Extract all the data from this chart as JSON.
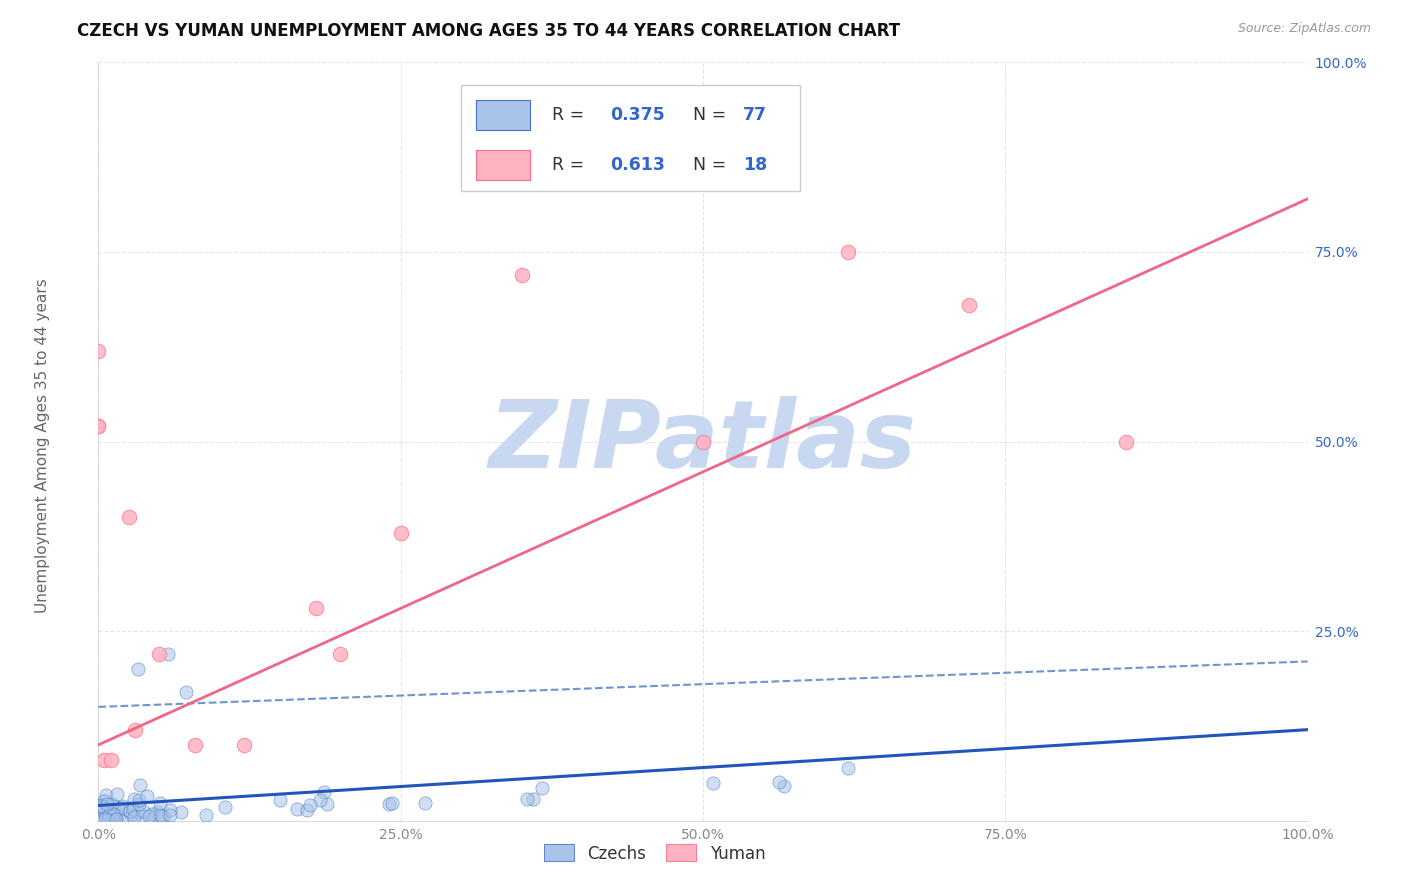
{
  "title": "CZECH VS YUMAN UNEMPLOYMENT AMONG AGES 35 TO 44 YEARS CORRELATION CHART",
  "source": "Source: ZipAtlas.com",
  "ylabel": "Unemployment Among Ages 35 to 44 years",
  "xlim": [
    0.0,
    1.0
  ],
  "ylim": [
    0.0,
    1.0
  ],
  "xticks": [
    0.0,
    0.25,
    0.5,
    0.75,
    1.0
  ],
  "xticklabels": [
    "0.0%",
    "25.0%",
    "50.0%",
    "75.0%",
    "100.0%"
  ],
  "ytick_positions": [
    0.0,
    0.25,
    0.5,
    0.75,
    1.0
  ],
  "ytick_labels_right": [
    "",
    "25.0%",
    "50.0%",
    "75.0%",
    "100.0%"
  ],
  "czech_color": "#A8C4E8",
  "czech_edge_color": "#4472C4",
  "yuman_color": "#FFB3C1",
  "yuman_edge_color": "#FF6B8A",
  "czech_line_color": "#2255BB",
  "czech_dash_color": "#5580CC",
  "yuman_line_color": "#EE6688",
  "stat_color": "#3366CC",
  "bg_color": "#ffffff",
  "grid_color": "#e5e5e5",
  "title_color": "#111111",
  "source_color": "#999999",
  "axis_label_color": "#666666",
  "watermark_text": "ZIPatlas",
  "watermark_color": "#c8d8f0",
  "czech_R": "0.375",
  "czech_N": "77",
  "yuman_R": "0.613",
  "yuman_N": "18",
  "legend_bottom_labels": [
    "Czechs",
    "Yuman"
  ],
  "czech_trend": [
    0.0,
    0.02,
    1.0,
    0.12
  ],
  "czech_dash": [
    0.0,
    0.15,
    1.0,
    0.21
  ],
  "yuman_trend": [
    0.0,
    0.1,
    1.0,
    0.82
  ],
  "yuman_scatter_x": [
    0.0,
    0.0,
    0.005,
    0.01,
    0.025,
    0.05,
    0.12,
    0.2,
    0.25,
    0.35,
    0.5,
    0.62,
    0.72,
    0.85,
    0.0,
    0.03,
    0.08,
    0.18
  ],
  "yuman_scatter_y": [
    0.62,
    0.52,
    0.08,
    0.08,
    0.4,
    0.22,
    0.1,
    0.22,
    0.38,
    0.72,
    0.5,
    0.75,
    0.68,
    0.5,
    0.52,
    0.12,
    0.1,
    0.28
  ]
}
